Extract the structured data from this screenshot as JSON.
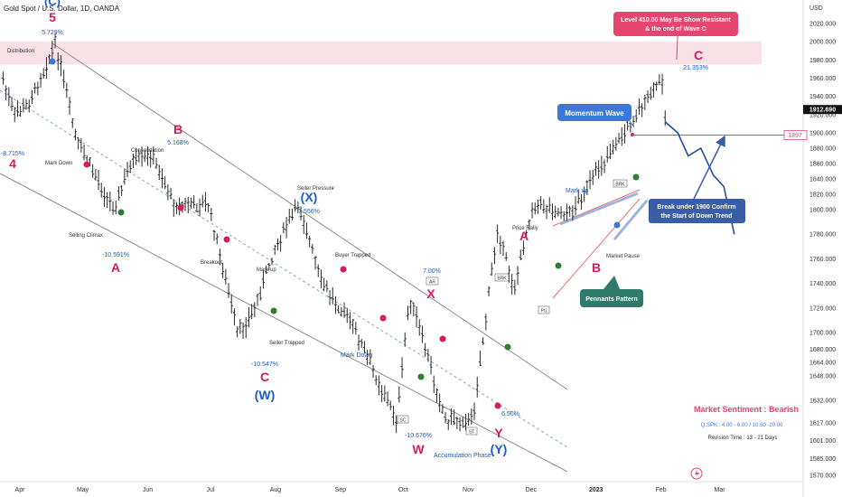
{
  "header": {
    "title": "Gold Spot / U.S. Dollar, 1D, OANDA"
  },
  "price_axis": {
    "unit": "USD",
    "current_price": "1912.690",
    "marker_price": "1897",
    "ticks": [
      "2020.000",
      "2000.000",
      "1980.000",
      "1960.000",
      "1940.000",
      "1920.000",
      "1900.000",
      "1880.000",
      "1860.000",
      "1840.000",
      "1820.000",
      "1800.000",
      "1780.000",
      "1760.000",
      "1740.000",
      "1720.000",
      "1700.000",
      "1680.000",
      "1664.000",
      "1648.000",
      "1632.000",
      "1617.000",
      "1601.000",
      "1585.000",
      "1570.000"
    ]
  },
  "time_axis": {
    "ticks": [
      "Apr",
      "May",
      "Jun",
      "Jul",
      "Aug",
      "Sep",
      "Oct",
      "Nov",
      "Dec",
      "2023",
      "Feb",
      "Mar"
    ]
  },
  "colors": {
    "up": "#26a69a",
    "down": "#ef5350",
    "bars": "#2b2b2b",
    "wave_pink": "#d81b60",
    "wave_blue": "#1e5bbf",
    "channel": "#8c8c8c",
    "zone": "#f8d7df",
    "callout_pink": "#e5466f",
    "callout_blue": "#3c78d8",
    "callout_dark": "#3a5da8",
    "callout_green": "#2e7b6b",
    "projection": "#1f4e9a"
  },
  "annotations": {
    "wave_labels": [
      {
        "text": "(C)",
        "color": "blue"
      },
      {
        "text": "5",
        "color": "pink"
      },
      {
        "text": "4",
        "color": "pink"
      },
      {
        "text": "A",
        "color": "pink"
      },
      {
        "text": "B",
        "color": "pink"
      },
      {
        "text": "C",
        "color": "pink"
      },
      {
        "text": "(W)",
        "color": "blue"
      },
      {
        "text": "(X)",
        "color": "blue"
      },
      {
        "text": "X",
        "color": "pink"
      },
      {
        "text": "W",
        "color": "pink"
      },
      {
        "text": "Y",
        "color": "pink"
      },
      {
        "text": "(Y)",
        "color": "blue"
      },
      {
        "text": "A",
        "color": "pink"
      },
      {
        "text": "B",
        "color": "pink"
      },
      {
        "text": "C",
        "color": "pink"
      }
    ],
    "percents": [
      "5.729%",
      "-8.715%",
      "5.168%",
      "-10.591%",
      "7.556%",
      "-10.547%",
      "7.00%",
      "-10.676%",
      "6.50%",
      "21.353%"
    ],
    "notes": [
      "Distribution",
      "Mark Down",
      "Consolidation",
      "Selling Climax",
      "Breakout",
      "Seller Pressure",
      "Mark up",
      "Buyer Trapped",
      "Seller Trapped",
      "Mark Down",
      "Accumulation Phase",
      "Price Rally",
      "Mark up",
      "Market Pause"
    ],
    "boxes": [
      "AR",
      "SC",
      "ST",
      "BRK",
      "PU",
      "BRK"
    ]
  },
  "callouts": {
    "level": "Level 410.00 May Be Show Resistant\n& the end of Wave C",
    "momentum": "Momentum Wave",
    "breakdown": "Break under 1900 Confirm\nthe Start of  Down Trend",
    "pennants": "Pennants Pattern"
  },
  "sentiment": {
    "title": "Market Sentiment : Bearish",
    "qspk": "Q.SPK : 4.00 - 6.00 / 10.50 -20.00",
    "revision": "Revision Time : 13 - 21 Days"
  },
  "chart_data": {
    "type": "ohlc",
    "title": "Gold Spot / U.S. Dollar, 1D, OANDA",
    "xlabel": "",
    "ylabel": "USD",
    "ylim": [
      1565,
      2045
    ],
    "grid": false,
    "resistance_zone": [
      1975,
      2000
    ],
    "horizontal_level": 1897,
    "current_price": 1912.69,
    "price_path": [
      {
        "date": "2022-03-24",
        "close": 1958
      },
      {
        "date": "2022-03-29",
        "close": 1920
      },
      {
        "date": "2022-04-05",
        "close": 1930
      },
      {
        "date": "2022-04-18",
        "close": 1998
      },
      {
        "date": "2022-04-28",
        "close": 1890
      },
      {
        "date": "2022-05-16",
        "close": 1800
      },
      {
        "date": "2022-05-24",
        "close": 1860
      },
      {
        "date": "2022-06-03",
        "close": 1870
      },
      {
        "date": "2022-06-14",
        "close": 1806
      },
      {
        "date": "2022-06-30",
        "close": 1806
      },
      {
        "date": "2022-07-14",
        "close": 1698
      },
      {
        "date": "2022-07-21",
        "close": 1715
      },
      {
        "date": "2022-08-01",
        "close": 1770
      },
      {
        "date": "2022-08-12",
        "close": 1808
      },
      {
        "date": "2022-08-23",
        "close": 1740
      },
      {
        "date": "2022-09-05",
        "close": 1712
      },
      {
        "date": "2022-09-28",
        "close": 1618
      },
      {
        "date": "2022-10-04",
        "close": 1730
      },
      {
        "date": "2022-10-21",
        "close": 1620
      },
      {
        "date": "2022-11-03",
        "close": 1618
      },
      {
        "date": "2022-11-15",
        "close": 1785
      },
      {
        "date": "2022-11-23",
        "close": 1735
      },
      {
        "date": "2022-12-02",
        "close": 1810
      },
      {
        "date": "2022-12-19",
        "close": 1795
      },
      {
        "date": "2023-01-04",
        "close": 1860
      },
      {
        "date": "2023-01-18",
        "close": 1912
      },
      {
        "date": "2023-01-31",
        "close": 1955
      },
      {
        "date": "2023-02-02",
        "close": 1960
      },
      {
        "date": "2023-02-03",
        "close": 1912.69
      }
    ],
    "projection": [
      {
        "date": "2023-02-03",
        "close": 1912
      },
      {
        "date": "2023-02-09",
        "close": 1900
      },
      {
        "date": "2023-02-14",
        "close": 1870
      },
      {
        "date": "2023-02-20",
        "close": 1880
      },
      {
        "date": "2023-02-26",
        "close": 1845
      },
      {
        "date": "2023-03-03",
        "close": 1830
      },
      {
        "date": "2023-03-08",
        "close": 1780
      }
    ]
  }
}
